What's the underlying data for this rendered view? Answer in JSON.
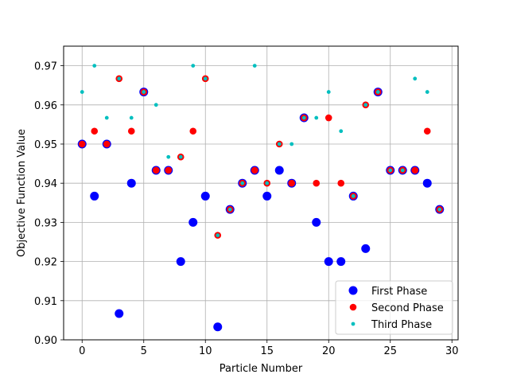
{
  "chart_data": {
    "type": "scatter",
    "title": "",
    "xlabel": "Particle Number",
    "ylabel": "Objective Function Value",
    "xlim": [
      -1.5,
      30.5
    ],
    "ylim": [
      0.9,
      0.975
    ],
    "grid": true,
    "legend_position": "lower-right",
    "xticks": [
      0,
      5,
      10,
      15,
      20,
      25,
      30
    ],
    "xtick_labels": [
      "0",
      "5",
      "10",
      "15",
      "20",
      "25",
      "30"
    ],
    "yticks": [
      0.9,
      0.91,
      0.92,
      0.93,
      0.94,
      0.95,
      0.96,
      0.97
    ],
    "ytick_labels": [
      "0.90",
      "0.91",
      "0.92",
      "0.93",
      "0.94",
      "0.95",
      "0.96",
      "0.97"
    ],
    "series": [
      {
        "name": "First Phase",
        "color": "#0000ff",
        "marker": "large-dot",
        "x": [
          0,
          1,
          2,
          3,
          4,
          5,
          6,
          7,
          8,
          9,
          10,
          11,
          12,
          13,
          14,
          15,
          16,
          17,
          18,
          19,
          20,
          21,
          22,
          23,
          24,
          25,
          26,
          27,
          28,
          29
        ],
        "y": [
          0.95,
          0.9367,
          0.95,
          0.9067,
          0.94,
          0.9633,
          0.9433,
          0.9433,
          0.92,
          0.93,
          0.9367,
          0.9033,
          0.9333,
          0.94,
          0.9433,
          0.9367,
          0.9433,
          0.94,
          0.9567,
          0.93,
          0.92,
          0.92,
          0.9367,
          0.9233,
          0.9633,
          0.9433,
          0.9433,
          0.9433,
          0.94,
          0.9333
        ]
      },
      {
        "name": "Second Phase",
        "color": "#ff0000",
        "marker": "medium-dot",
        "x": [
          0,
          1,
          2,
          3,
          4,
          5,
          6,
          7,
          8,
          9,
          10,
          11,
          12,
          13,
          14,
          15,
          16,
          17,
          18,
          19,
          20,
          21,
          22,
          23,
          24,
          25,
          26,
          27,
          28,
          29
        ],
        "y": [
          0.95,
          0.9533,
          0.95,
          0.9667,
          0.9533,
          0.9633,
          0.9433,
          0.9433,
          0.9467,
          0.9533,
          0.9667,
          0.9267,
          0.9333,
          0.94,
          0.9433,
          0.94,
          0.95,
          0.94,
          0.9567,
          0.94,
          0.9567,
          0.94,
          0.9367,
          0.96,
          0.9633,
          0.9433,
          0.9433,
          0.9433,
          0.9533,
          0.9333
        ]
      },
      {
        "name": "Third Phase",
        "color": "#00bfbf",
        "marker": "small-dot",
        "x": [
          0,
          1,
          2,
          3,
          4,
          5,
          6,
          7,
          8,
          9,
          10,
          11,
          12,
          13,
          14,
          15,
          16,
          17,
          18,
          19,
          20,
          21,
          22,
          23,
          24,
          25,
          26,
          27,
          28,
          29
        ],
        "y": [
          0.9633,
          0.97,
          0.9567,
          0.9667,
          0.9567,
          0.9633,
          0.96,
          0.9467,
          0.9467,
          0.97,
          0.9667,
          0.9267,
          0.9333,
          0.94,
          0.97,
          0.94,
          0.95,
          0.95,
          0.9567,
          0.9567,
          0.9633,
          0.9533,
          0.9367,
          0.96,
          0.9633,
          0.9433,
          0.9433,
          0.9667,
          0.9633,
          0.9333
        ]
      }
    ]
  }
}
